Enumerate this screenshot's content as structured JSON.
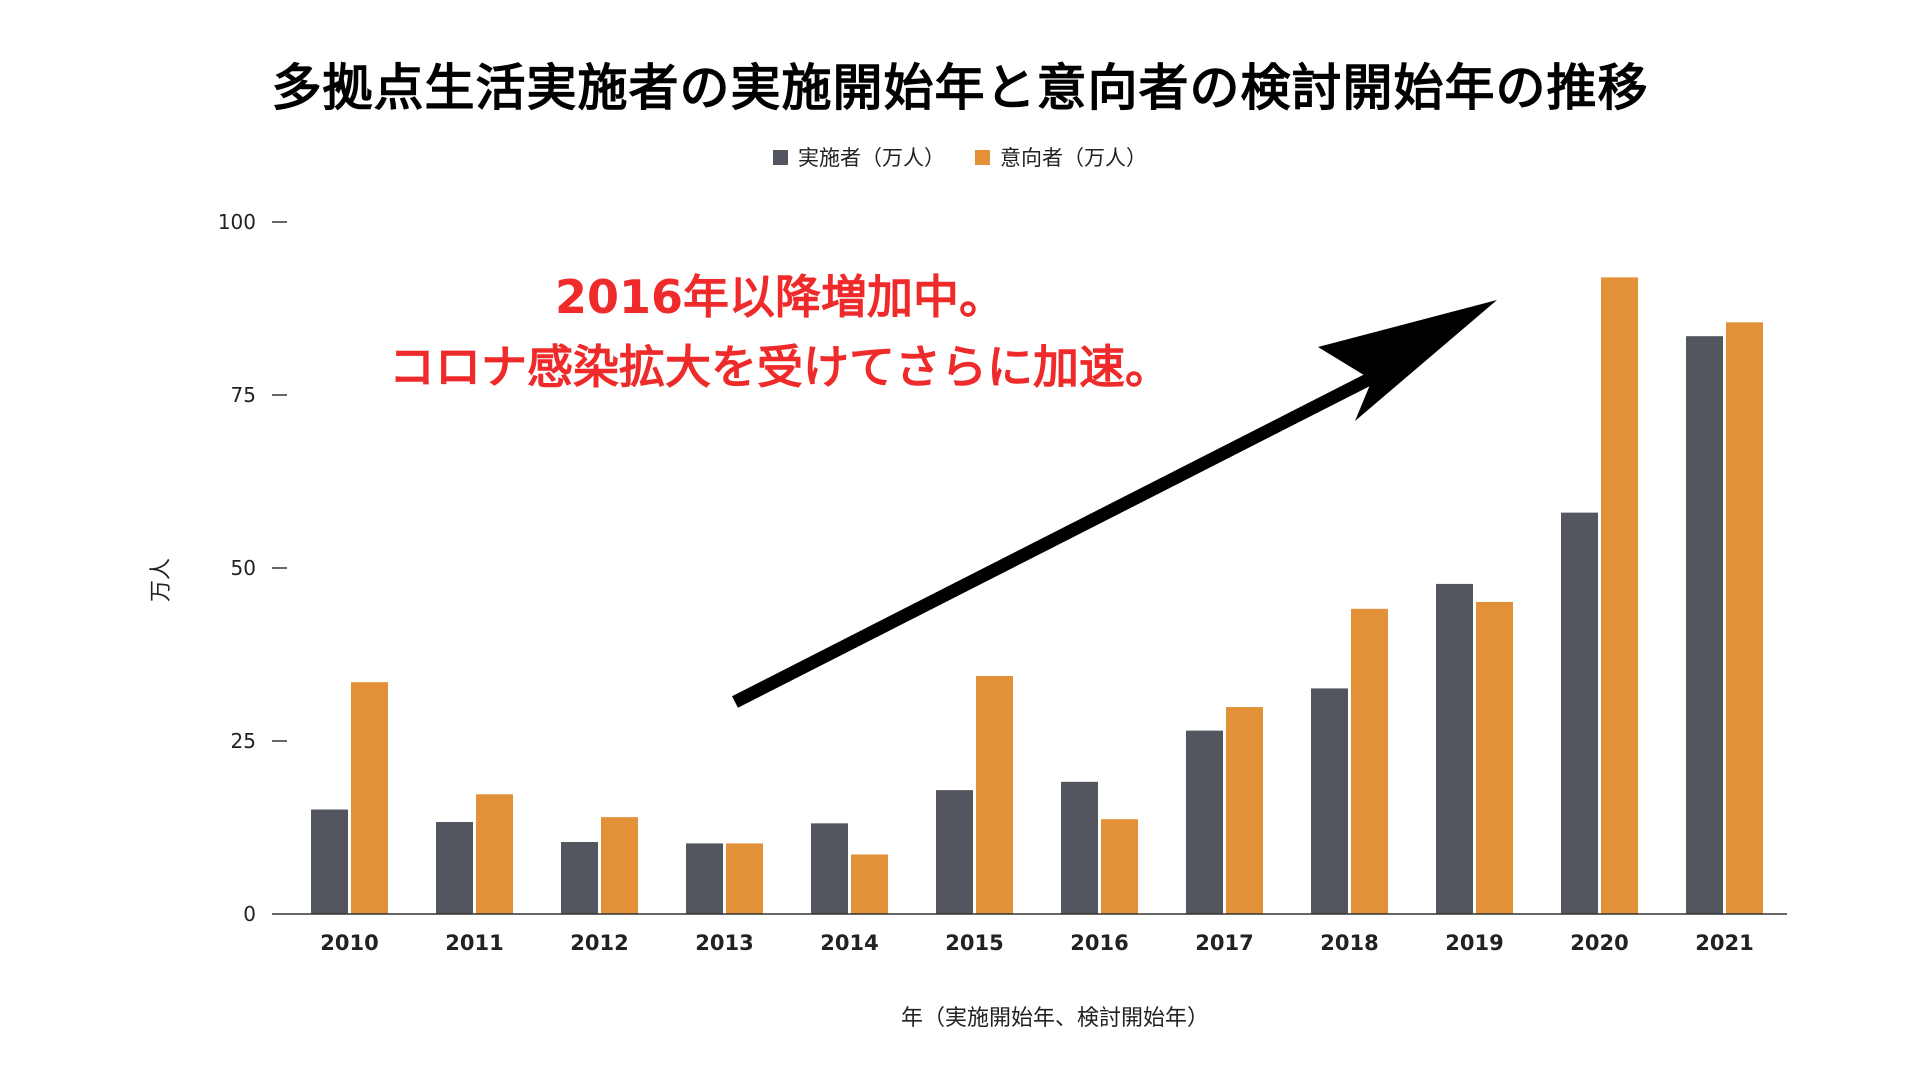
{
  "chart_data": {
    "type": "bar",
    "title": "多拠点生活実施者の実施開始年と意向者の検討開始年の推移",
    "xlabel": "年（実施開始年、検討開始年）",
    "ylabel": "万人",
    "ylim": [
      0,
      100
    ],
    "yticks": [
      0,
      25,
      50,
      75,
      100
    ],
    "grid": false,
    "legend_position": "top-center",
    "categories": [
      "2010",
      "2011",
      "2012",
      "2013",
      "2014",
      "2015",
      "2016",
      "2017",
      "2018",
      "2019",
      "2020",
      "2021"
    ],
    "series": [
      {
        "name": "実施者（万人）",
        "color": "#53565e",
        "values": [
          15.1,
          13.3,
          10.4,
          10.2,
          13.1,
          17.9,
          19.1,
          26.5,
          32.6,
          47.7,
          58.0,
          83.5
        ]
      },
      {
        "name": "意向者（万人）",
        "color": "#e39138",
        "values": [
          33.5,
          17.3,
          14.0,
          10.2,
          8.6,
          34.4,
          13.7,
          29.9,
          44.1,
          45.1,
          92.0,
          85.5
        ]
      }
    ],
    "annotation": {
      "lines": [
        "2016年以降増加中。",
        "コロナ感染拡大を受けてさらに加速。"
      ],
      "color": "#ef2a2a"
    }
  }
}
